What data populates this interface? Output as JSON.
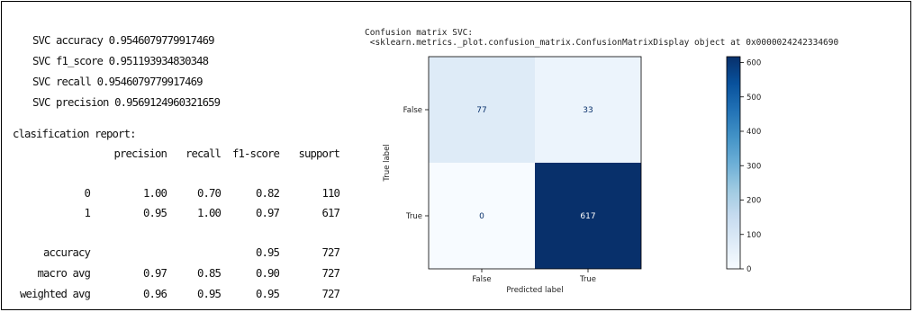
{
  "metrics": [
    {
      "label": "SVC accuracy",
      "value": "0.9546079779917469"
    },
    {
      "label": "SVC f1_score",
      "value": "0.951193934830348"
    },
    {
      "label": "SVC recall",
      "value": "0.9546079779917469"
    },
    {
      "label": "SVC precision",
      "value": "0.9569124960321659"
    }
  ],
  "report": {
    "title": "clasification report:",
    "headers": [
      "precision",
      "recall",
      "f1-score",
      "support"
    ],
    "rows": [
      {
        "label": "0",
        "precision": "1.00",
        "recall": "0.70",
        "f1": "0.82",
        "support": "110"
      },
      {
        "label": "1",
        "precision": "0.95",
        "recall": "1.00",
        "f1": "0.97",
        "support": "617"
      },
      {
        "label": "accuracy",
        "precision": "",
        "recall": "",
        "f1": "0.95",
        "support": "727"
      },
      {
        "label": "macro avg",
        "precision": "0.97",
        "recall": "0.85",
        "f1": "0.90",
        "support": "727"
      },
      {
        "label": "weighted avg",
        "precision": "0.96",
        "recall": "0.95",
        "f1": "0.95",
        "support": "727"
      }
    ]
  },
  "confusion": {
    "header_line1": "Confusion matrix SVC:",
    "header_line2": " <sklearn.metrics._plot.confusion_matrix.ConfusionMatrixDisplay object at 0x0000024242334690"
  },
  "chart_data": {
    "type": "heatmap",
    "title": "",
    "xlabel": "Predicted label",
    "ylabel": "True label",
    "x_categories": [
      "False",
      "True"
    ],
    "y_categories": [
      "False",
      "True"
    ],
    "values": [
      [
        77,
        33
      ],
      [
        0,
        617
      ]
    ],
    "colormap": "Blues",
    "colorbar_range": [
      0,
      617
    ],
    "colorbar_ticks": [
      "0",
      "100",
      "200",
      "300",
      "400",
      "500",
      "600"
    ],
    "grid": false
  }
}
